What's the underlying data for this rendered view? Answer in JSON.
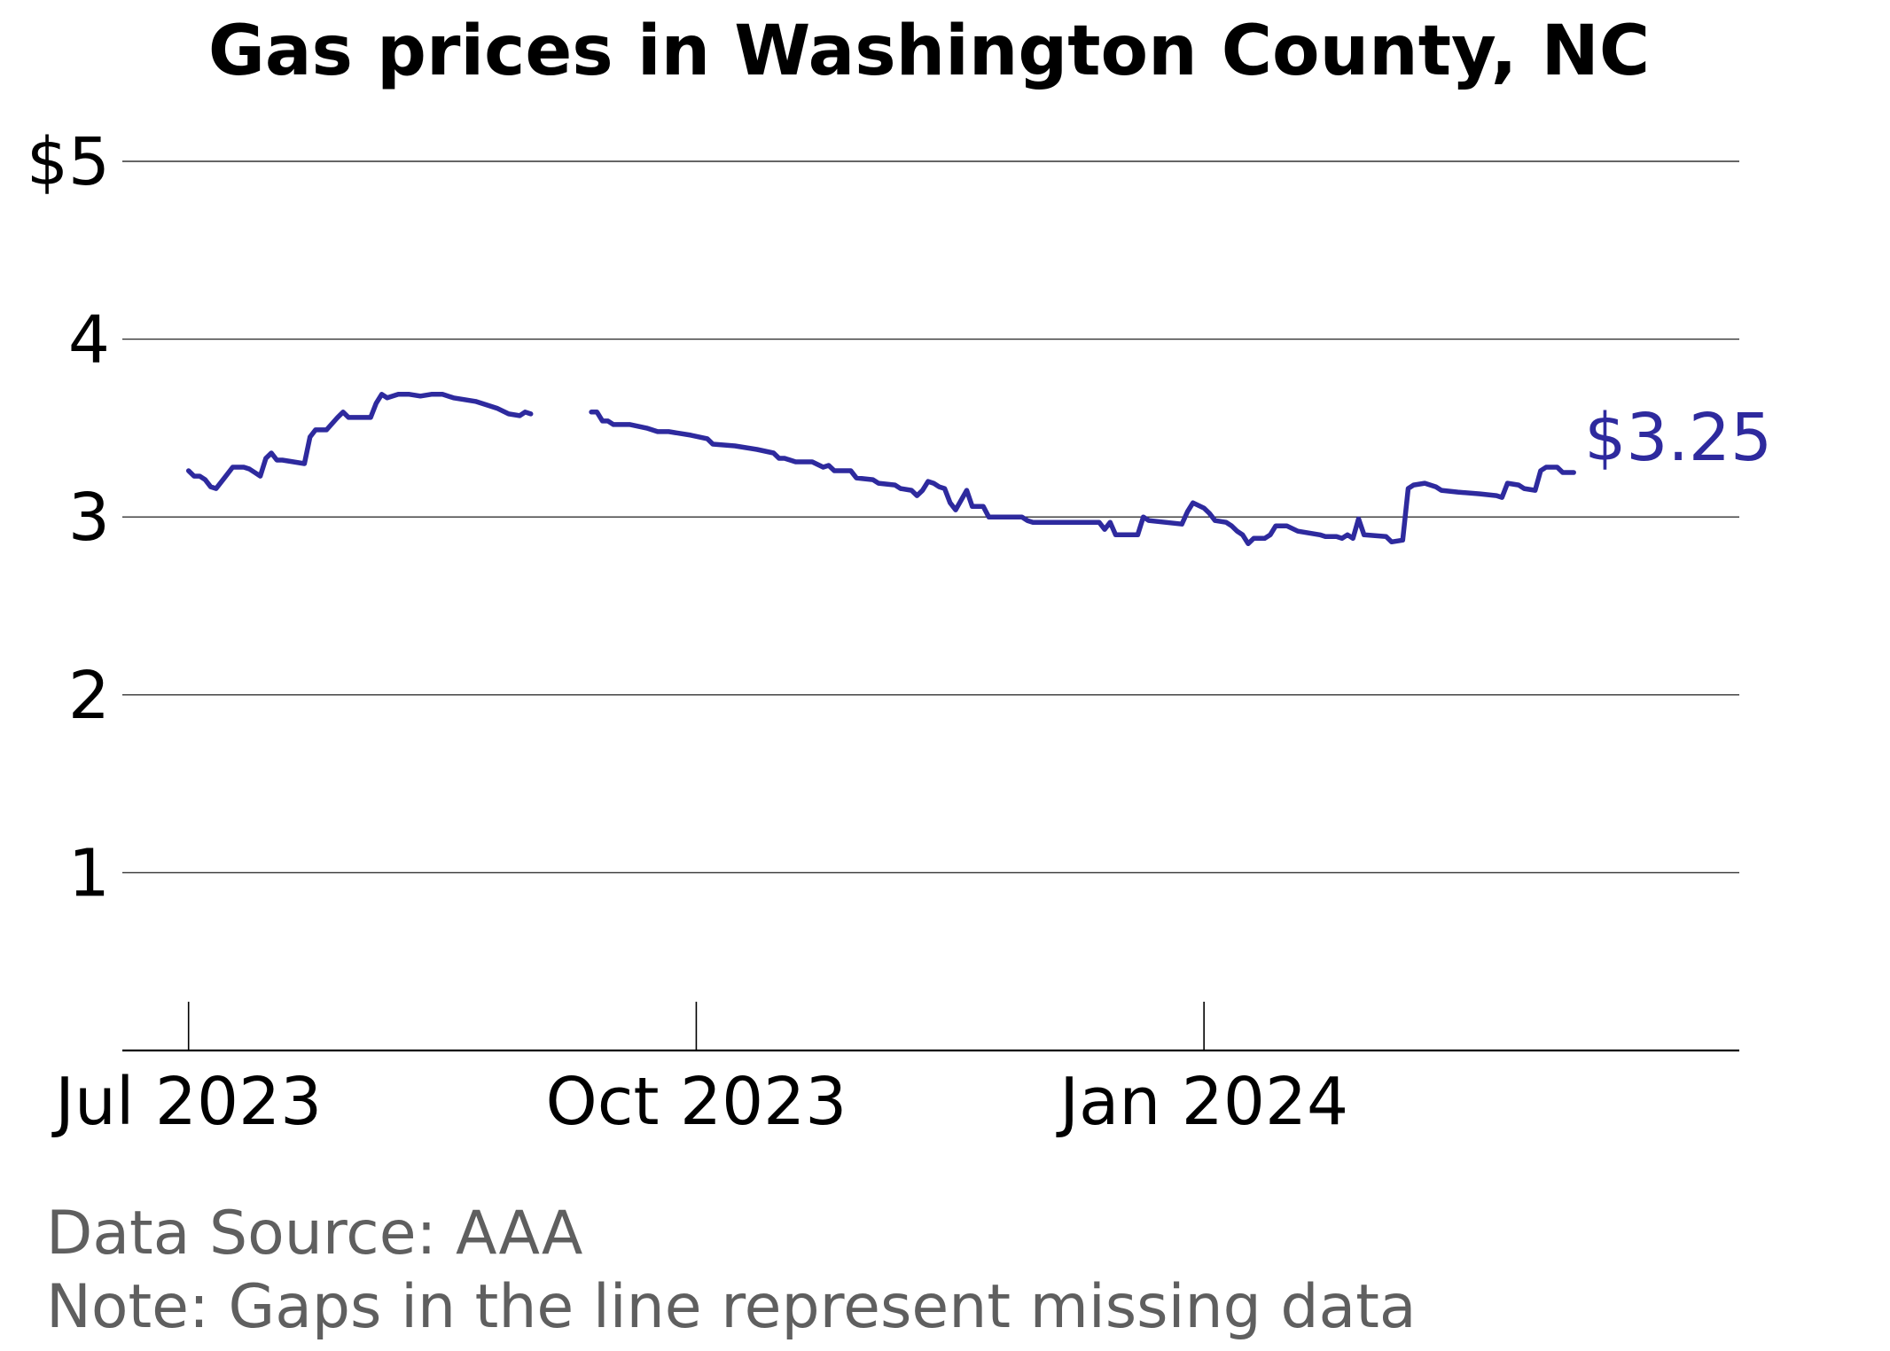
{
  "chart_data": {
    "type": "line",
    "title": "Gas prices in Washington County, NC",
    "xlabel": "",
    "ylabel": "",
    "ylim": [
      0,
      5
    ],
    "y_ticks": [
      {
        "value": 1,
        "label": "1"
      },
      {
        "value": 2,
        "label": "2"
      },
      {
        "value": 3,
        "label": "3"
      },
      {
        "value": 4,
        "label": "4"
      },
      {
        "value": 5,
        "label": "$5"
      }
    ],
    "x_range": [
      "2023-06-19",
      "2024-04-07"
    ],
    "x_ticks": [
      {
        "date": "2023-07-01",
        "label": "Jul 2023"
      },
      {
        "date": "2023-10-01",
        "label": "Oct 2023"
      },
      {
        "date": "2024-01-01",
        "label": "Jan 2024"
      }
    ],
    "grid": "horizontal",
    "line_color": "#2e2a9e",
    "end_label": "$3.25",
    "source": "Data Source: AAA",
    "note": "Note: Gaps in the line represent missing data",
    "series": [
      {
        "segments": [
          [
            [
              "2023-07-01",
              3.26
            ],
            [
              "2023-07-02",
              3.23
            ],
            [
              "2023-07-03",
              3.23
            ],
            [
              "2023-07-04",
              3.21
            ],
            [
              "2023-07-05",
              3.17
            ],
            [
              "2023-07-06",
              3.16
            ],
            [
              "2023-07-08",
              3.24
            ],
            [
              "2023-07-09",
              3.28
            ],
            [
              "2023-07-10",
              3.28
            ],
            [
              "2023-07-11",
              3.28
            ],
            [
              "2023-07-12",
              3.27
            ],
            [
              "2023-07-13",
              3.25
            ],
            [
              "2023-07-14",
              3.23
            ],
            [
              "2023-07-15",
              3.33
            ],
            [
              "2023-07-16",
              3.36
            ],
            [
              "2023-07-17",
              3.32
            ],
            [
              "2023-07-18",
              3.32
            ],
            [
              "2023-07-20",
              3.31
            ],
            [
              "2023-07-22",
              3.3
            ],
            [
              "2023-07-23",
              3.45
            ],
            [
              "2023-07-24",
              3.49
            ],
            [
              "2023-07-26",
              3.49
            ],
            [
              "2023-07-28",
              3.56
            ],
            [
              "2023-07-29",
              3.59
            ],
            [
              "2023-07-30",
              3.56
            ],
            [
              "2023-08-01",
              3.56
            ],
            [
              "2023-08-03",
              3.56
            ],
            [
              "2023-08-04",
              3.64
            ],
            [
              "2023-08-05",
              3.69
            ],
            [
              "2023-08-06",
              3.67
            ],
            [
              "2023-08-08",
              3.69
            ],
            [
              "2023-08-10",
              3.69
            ],
            [
              "2023-08-12",
              3.68
            ],
            [
              "2023-08-14",
              3.69
            ],
            [
              "2023-08-16",
              3.69
            ],
            [
              "2023-08-18",
              3.67
            ],
            [
              "2023-08-20",
              3.66
            ],
            [
              "2023-08-22",
              3.65
            ],
            [
              "2023-08-24",
              3.63
            ],
            [
              "2023-08-26",
              3.61
            ],
            [
              "2023-08-28",
              3.58
            ],
            [
              "2023-08-30",
              3.57
            ],
            [
              "2023-08-31",
              3.59
            ],
            [
              "2023-09-01",
              3.58
            ]
          ],
          [
            [
              "2023-09-12",
              3.59
            ],
            [
              "2023-09-13",
              3.59
            ],
            [
              "2023-09-14",
              3.54
            ],
            [
              "2023-09-15",
              3.54
            ],
            [
              "2023-09-16",
              3.52
            ],
            [
              "2023-09-19",
              3.52
            ],
            [
              "2023-09-22",
              3.5
            ],
            [
              "2023-09-24",
              3.48
            ],
            [
              "2023-09-26",
              3.48
            ],
            [
              "2023-09-30",
              3.46
            ],
            [
              "2023-10-03",
              3.44
            ],
            [
              "2023-10-04",
              3.41
            ],
            [
              "2023-10-08",
              3.4
            ],
            [
              "2023-10-12",
              3.38
            ],
            [
              "2023-10-15",
              3.36
            ],
            [
              "2023-10-16",
              3.33
            ],
            [
              "2023-10-17",
              3.33
            ],
            [
              "2023-10-18",
              3.32
            ],
            [
              "2023-10-19",
              3.31
            ],
            [
              "2023-10-22",
              3.31
            ],
            [
              "2023-10-24",
              3.28
            ],
            [
              "2023-10-25",
              3.29
            ],
            [
              "2023-10-26",
              3.26
            ],
            [
              "2023-10-29",
              3.26
            ],
            [
              "2023-10-30",
              3.22
            ],
            [
              "2023-11-02",
              3.21
            ],
            [
              "2023-11-03",
              3.19
            ],
            [
              "2023-11-06",
              3.18
            ],
            [
              "2023-11-07",
              3.16
            ],
            [
              "2023-11-09",
              3.15
            ],
            [
              "2023-11-10",
              3.12
            ],
            [
              "2023-11-11",
              3.15
            ],
            [
              "2023-11-12",
              3.2
            ],
            [
              "2023-11-13",
              3.19
            ],
            [
              "2023-11-14",
              3.17
            ],
            [
              "2023-11-15",
              3.16
            ],
            [
              "2023-11-16",
              3.08
            ],
            [
              "2023-11-17",
              3.04
            ],
            [
              "2023-11-19",
              3.15
            ],
            [
              "2023-11-20",
              3.06
            ],
            [
              "2023-11-22",
              3.06
            ],
            [
              "2023-11-23",
              3.0
            ],
            [
              "2023-11-29",
              3.0
            ],
            [
              "2023-11-30",
              2.98
            ],
            [
              "2023-12-01",
              2.97
            ],
            [
              "2023-12-13",
              2.97
            ],
            [
              "2023-12-14",
              2.93
            ],
            [
              "2023-12-15",
              2.97
            ],
            [
              "2023-12-16",
              2.9
            ],
            [
              "2023-12-20",
              2.9
            ],
            [
              "2023-12-21",
              3.0
            ],
            [
              "2023-12-22",
              2.98
            ],
            [
              "2023-12-28",
              2.96
            ],
            [
              "2023-12-29",
              3.03
            ],
            [
              "2023-12-30",
              3.08
            ],
            [
              "2024-01-01",
              3.05
            ],
            [
              "2024-01-02",
              3.02
            ],
            [
              "2024-01-03",
              2.98
            ],
            [
              "2024-01-05",
              2.97
            ],
            [
              "2024-01-06",
              2.95
            ],
            [
              "2024-01-07",
              2.92
            ],
            [
              "2024-01-08",
              2.9
            ],
            [
              "2024-01-09",
              2.85
            ],
            [
              "2024-01-10",
              2.88
            ],
            [
              "2024-01-12",
              2.88
            ],
            [
              "2024-01-13",
              2.9
            ],
            [
              "2024-01-14",
              2.95
            ],
            [
              "2024-01-16",
              2.95
            ],
            [
              "2024-01-18",
              2.92
            ],
            [
              "2024-01-22",
              2.9
            ],
            [
              "2024-01-23",
              2.89
            ],
            [
              "2024-01-25",
              2.89
            ],
            [
              "2024-01-26",
              2.88
            ],
            [
              "2024-01-27",
              2.9
            ],
            [
              "2024-01-28",
              2.88
            ],
            [
              "2024-01-29",
              2.99
            ],
            [
              "2024-01-30",
              2.9
            ],
            [
              "2024-02-03",
              2.89
            ],
            [
              "2024-02-04",
              2.86
            ],
            [
              "2024-02-06",
              2.87
            ],
            [
              "2024-02-07",
              3.16
            ],
            [
              "2024-02-08",
              3.18
            ],
            [
              "2024-02-10",
              3.19
            ],
            [
              "2024-02-12",
              3.17
            ],
            [
              "2024-02-13",
              3.15
            ],
            [
              "2024-02-16",
              3.14
            ],
            [
              "2024-02-20",
              3.13
            ],
            [
              "2024-02-23",
              3.12
            ],
            [
              "2024-02-24",
              3.11
            ],
            [
              "2024-02-25",
              3.19
            ],
            [
              "2024-02-27",
              3.18
            ],
            [
              "2024-02-28",
              3.16
            ],
            [
              "2024-03-01",
              3.15
            ],
            [
              "2024-03-02",
              3.26
            ],
            [
              "2024-03-03",
              3.28
            ],
            [
              "2024-03-05",
              3.28
            ],
            [
              "2024-03-06",
              3.25
            ],
            [
              "2024-03-08",
              3.25
            ]
          ]
        ]
      }
    ]
  }
}
